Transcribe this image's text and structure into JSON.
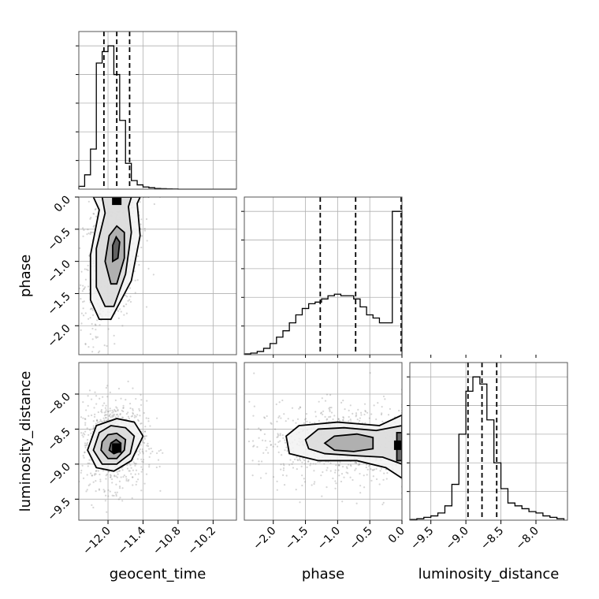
{
  "chart_data": {
    "type": "corner",
    "parameters": [
      "geocent_time",
      "phase",
      "luminosity_distance"
    ],
    "labels": {
      "geocent_time": "geocent_time",
      "phase": "phase",
      "luminosity_distance": "luminosity_distance"
    },
    "ranges": {
      "geocent_time": [
        -12.5,
        -9.8
      ],
      "phase": [
        -2.45,
        0.0
      ],
      "luminosity_distance": [
        -9.8,
        -7.55
      ]
    },
    "ticks": {
      "geocent_time": [
        -12.0,
        -11.4,
        -10.8,
        -10.2
      ],
      "phase": [
        -2.0,
        -1.5,
        -1.0,
        -0.5,
        0.0
      ],
      "luminosity_distance": [
        -9.5,
        -9.0,
        -8.5,
        -8.0
      ]
    },
    "tick_labels": {
      "geocent_time": [
        "−12.0",
        "−11.4",
        "−10.8",
        "−10.2"
      ],
      "phase": [
        "−2.0",
        "−1.5",
        "−1.0",
        "−0.5",
        "0.0"
      ],
      "luminosity_distance": [
        "−9.5",
        "−9.0",
        "−8.5",
        "−8.0"
      ]
    },
    "quantiles": {
      "geocent_time": [
        -12.07,
        -11.85,
        -11.63
      ],
      "phase": [
        -1.27,
        -0.72,
        0.0
      ],
      "luminosity_distance": [
        -8.97,
        -8.77,
        -8.56
      ]
    },
    "histograms": {
      "geocent_time": {
        "edges": [
          -12.5,
          -12.4,
          -12.3,
          -12.2,
          -12.1,
          -12.0,
          -11.9,
          -11.8,
          -11.7,
          -11.6,
          -11.5,
          -11.4,
          -11.3,
          -11.2,
          -11.1,
          -11.0,
          -10.9,
          -10.8,
          -10.7,
          -10.6,
          -10.5,
          -10.4,
          -10.3,
          -10.2,
          -10.1,
          -10.0,
          -9.9,
          -9.8
        ],
        "counts": [
          2,
          10,
          28,
          88,
          96,
          100,
          80,
          48,
          18,
          6,
          3,
          1.5,
          1,
          0.5,
          0.3,
          0.2,
          0.1,
          0,
          0,
          0,
          0,
          0,
          0,
          0,
          0,
          0,
          0
        ]
      },
      "phase": {
        "edges": [
          -2.45,
          -2.35,
          -2.25,
          -2.15,
          -2.05,
          -1.95,
          -1.85,
          -1.75,
          -1.65,
          -1.55,
          -1.45,
          -1.35,
          -1.25,
          -1.15,
          -1.05,
          -0.95,
          -0.85,
          -0.75,
          -0.65,
          -0.55,
          -0.45,
          -0.35,
          -0.25,
          -0.15,
          -0.05,
          0.0
        ],
        "counts": [
          0.5,
          1,
          2,
          4,
          7,
          11,
          15,
          20,
          25,
          29,
          32,
          33,
          35,
          37,
          38,
          37,
          37,
          35,
          30,
          25,
          23,
          20,
          20,
          90,
          90
        ]
      },
      "luminosity_distance": {
        "edges": [
          -9.8,
          -9.7,
          -9.6,
          -9.5,
          -9.4,
          -9.3,
          -9.2,
          -9.1,
          -9.0,
          -8.9,
          -8.8,
          -8.7,
          -8.6,
          -8.5,
          -8.4,
          -8.3,
          -8.2,
          -8.1,
          -8.0,
          -7.9,
          -7.8,
          -7.7,
          -7.6
        ],
        "counts": [
          0.5,
          1,
          2,
          3,
          5,
          10,
          25,
          60,
          90,
          100,
          95,
          70,
          40,
          22,
          12,
          10,
          8,
          6,
          5,
          3,
          2,
          1
        ]
      }
    },
    "densities": [
      {
        "x": "geocent_time",
        "y": "phase",
        "peak": [
          -11.85,
          -0.05
        ],
        "contours": [
          {
            "level": 1,
            "points": [
              [
                -12.15,
                -1.9
              ],
              [
                -11.95,
                -1.9
              ],
              [
                -11.6,
                -1.3
              ],
              [
                -11.45,
                -0.6
              ],
              [
                -11.5,
                -0.1
              ],
              [
                -11.45,
                0.0
              ],
              [
                -12.25,
                0.0
              ],
              [
                -12.15,
                -0.2
              ],
              [
                -12.3,
                -0.9
              ],
              [
                -12.3,
                -1.6
              ]
            ]
          },
          {
            "level": 2,
            "points": [
              [
                -12.05,
                -1.7
              ],
              [
                -11.9,
                -1.7
              ],
              [
                -11.7,
                -1.2
              ],
              [
                -11.6,
                -0.55
              ],
              [
                -11.65,
                -0.15
              ],
              [
                -11.6,
                0.0
              ],
              [
                -12.1,
                0.0
              ],
              [
                -12.05,
                -0.25
              ],
              [
                -12.2,
                -0.8
              ],
              [
                -12.2,
                -1.4
              ]
            ]
          },
          {
            "level": 3,
            "points": [
              [
                -11.95,
                -1.35
              ],
              [
                -11.85,
                -1.35
              ],
              [
                -11.72,
                -0.95
              ],
              [
                -11.72,
                -0.55
              ],
              [
                -11.85,
                -0.45
              ],
              [
                -11.98,
                -0.6
              ],
              [
                -12.05,
                -1.0
              ]
            ]
          },
          {
            "level": 4,
            "points": [
              [
                -11.92,
                -1.0
              ],
              [
                -11.83,
                -0.95
              ],
              [
                -11.8,
                -0.7
              ],
              [
                -11.86,
                -0.62
              ],
              [
                -11.92,
                -0.75
              ]
            ]
          }
        ]
      },
      {
        "x": "geocent_time",
        "y": "luminosity_distance",
        "peak": [
          -11.85,
          -8.77
        ],
        "contours": [
          {
            "level": 1,
            "points": [
              [
                -12.35,
                -8.8
              ],
              [
                -12.2,
                -9.05
              ],
              [
                -11.9,
                -9.1
              ],
              [
                -11.6,
                -8.95
              ],
              [
                -11.4,
                -8.6
              ],
              [
                -11.55,
                -8.4
              ],
              [
                -11.85,
                -8.35
              ],
              [
                -12.2,
                -8.45
              ]
            ]
          },
          {
            "level": 2,
            "points": [
              [
                -12.25,
                -8.8
              ],
              [
                -12.1,
                -9.0
              ],
              [
                -11.85,
                -9.0
              ],
              [
                -11.62,
                -8.85
              ],
              [
                -11.55,
                -8.6
              ],
              [
                -11.7,
                -8.48
              ],
              [
                -11.95,
                -8.45
              ],
              [
                -12.15,
                -8.55
              ]
            ]
          },
          {
            "level": 3,
            "points": [
              [
                -12.12,
                -8.8
              ],
              [
                -12.0,
                -8.92
              ],
              [
                -11.85,
                -8.92
              ],
              [
                -11.72,
                -8.8
              ],
              [
                -11.7,
                -8.65
              ],
              [
                -11.85,
                -8.56
              ],
              [
                -12.0,
                -8.58
              ],
              [
                -12.1,
                -8.68
              ]
            ]
          },
          {
            "level": 4,
            "points": [
              [
                -11.98,
                -8.8
              ],
              [
                -11.9,
                -8.85
              ],
              [
                -11.8,
                -8.82
              ],
              [
                -11.78,
                -8.7
              ],
              [
                -11.86,
                -8.65
              ],
              [
                -11.95,
                -8.7
              ]
            ]
          }
        ]
      },
      {
        "x": "phase",
        "y": "luminosity_distance",
        "peak": [
          -0.05,
          -8.73
        ],
        "contours": [
          {
            "level": 1,
            "points": [
              [
                -1.8,
                -8.6
              ],
              [
                -1.6,
                -8.45
              ],
              [
                -1.0,
                -8.4
              ],
              [
                -0.35,
                -8.45
              ],
              [
                0.0,
                -8.3
              ],
              [
                0.0,
                -9.2
              ],
              [
                -0.25,
                -9.05
              ],
              [
                -0.7,
                -8.95
              ],
              [
                -1.3,
                -8.95
              ],
              [
                -1.75,
                -8.85
              ]
            ]
          },
          {
            "level": 2,
            "points": [
              [
                -1.5,
                -8.65
              ],
              [
                -1.3,
                -8.5
              ],
              [
                -0.9,
                -8.48
              ],
              [
                -0.4,
                -8.52
              ],
              [
                0.0,
                -8.45
              ],
              [
                0.0,
                -9.0
              ],
              [
                -0.3,
                -8.9
              ],
              [
                -0.7,
                -8.88
              ],
              [
                -1.2,
                -8.85
              ],
              [
                -1.45,
                -8.78
              ]
            ]
          },
          {
            "level": 3,
            "points": [
              [
                -1.2,
                -8.7
              ],
              [
                -1.05,
                -8.6
              ],
              [
                -0.7,
                -8.57
              ],
              [
                -0.45,
                -8.62
              ],
              [
                -0.45,
                -8.78
              ],
              [
                -0.75,
                -8.82
              ],
              [
                -1.05,
                -8.8
              ]
            ]
          },
          {
            "level": 4,
            "points": [
              [
                -0.08,
                -8.55
              ],
              [
                0.0,
                -8.55
              ],
              [
                0.0,
                -8.95
              ],
              [
                -0.08,
                -8.95
              ]
            ]
          }
        ]
      }
    ]
  }
}
